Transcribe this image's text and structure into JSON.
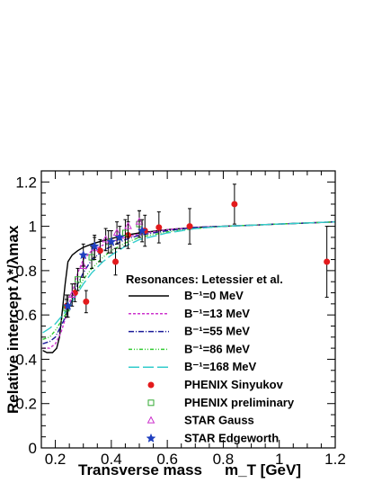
{
  "chart_data": {
    "type": "line",
    "title": "",
    "xlabel": "Transverse mass",
    "xlabel_unit": "m_T [GeV]",
    "ylabel": "Relative intercept",
    "ylabel_ratio": "λ*/λmax",
    "xlim": [
      0.15,
      1.2
    ],
    "ylim": [
      0.0,
      1.25
    ],
    "x_ticks": [
      "0.2",
      "0.4",
      "0.6",
      "0.8",
      "1",
      "1.2"
    ],
    "x_tick_values": [
      0.2,
      0.4,
      0.6,
      0.8,
      1.0,
      1.2
    ],
    "y_ticks": [
      "0",
      "0.2",
      "0.4",
      "0.6",
      "0.8",
      "1",
      "1.2"
    ],
    "y_tick_values": [
      0,
      0.2,
      0.4,
      0.6,
      0.8,
      1.0,
      1.2
    ],
    "legend_title": "Resonances: Letessier et al.",
    "legend_position": "center-right",
    "curves": [
      {
        "name": "B⁻¹=0 MeV",
        "color": "#000000",
        "dash": "",
        "x": [
          0.155,
          0.17,
          0.19,
          0.205,
          0.215,
          0.225,
          0.235,
          0.245,
          0.26,
          0.28,
          0.3,
          0.33,
          0.37,
          0.4,
          0.45,
          0.5,
          0.6,
          0.7,
          0.8,
          0.9,
          1.0,
          1.1,
          1.2
        ],
        "y": [
          0.44,
          0.43,
          0.43,
          0.45,
          0.5,
          0.62,
          0.74,
          0.84,
          0.87,
          0.89,
          0.905,
          0.92,
          0.935,
          0.945,
          0.96,
          0.97,
          0.985,
          0.995,
          1.0,
          1.005,
          1.01,
          1.015,
          1.02
        ]
      },
      {
        "name": "B⁻¹=13 MeV",
        "color": "#cc33cc",
        "dash": "3,2",
        "x": [
          0.155,
          0.18,
          0.2,
          0.22,
          0.24,
          0.26,
          0.28,
          0.3,
          0.33,
          0.37,
          0.4,
          0.45,
          0.5,
          0.6,
          0.7,
          0.8,
          0.9,
          1.0,
          1.1,
          1.2
        ],
        "y": [
          0.45,
          0.45,
          0.47,
          0.52,
          0.6,
          0.7,
          0.79,
          0.85,
          0.89,
          0.915,
          0.93,
          0.95,
          0.965,
          0.985,
          0.995,
          1.0,
          1.005,
          1.01,
          1.015,
          1.02
        ]
      },
      {
        "name": "B⁻¹=55 MeV",
        "color": "#1a1a99",
        "dash": "6,2,1,2",
        "x": [
          0.155,
          0.18,
          0.2,
          0.22,
          0.24,
          0.26,
          0.28,
          0.3,
          0.33,
          0.37,
          0.4,
          0.45,
          0.5,
          0.6,
          0.7,
          0.8,
          0.9,
          1.0,
          1.1,
          1.2
        ],
        "y": [
          0.47,
          0.48,
          0.5,
          0.55,
          0.6,
          0.67,
          0.74,
          0.79,
          0.85,
          0.89,
          0.91,
          0.94,
          0.96,
          0.98,
          0.995,
          1.0,
          1.005,
          1.01,
          1.015,
          1.02
        ]
      },
      {
        "name": "B⁻¹=86 MeV",
        "color": "#33cc33",
        "dash": "4,2,1,2,1,2",
        "x": [
          0.155,
          0.18,
          0.2,
          0.22,
          0.24,
          0.26,
          0.28,
          0.3,
          0.33,
          0.37,
          0.4,
          0.45,
          0.5,
          0.6,
          0.7,
          0.8,
          0.9,
          1.0,
          1.1,
          1.2
        ],
        "y": [
          0.49,
          0.5,
          0.53,
          0.57,
          0.61,
          0.66,
          0.71,
          0.76,
          0.81,
          0.86,
          0.89,
          0.925,
          0.95,
          0.975,
          0.99,
          1.0,
          1.005,
          1.01,
          1.015,
          1.02
        ]
      },
      {
        "name": "B⁻¹=168 MeV",
        "color": "#33cccc",
        "dash": "12,4",
        "x": [
          0.155,
          0.18,
          0.2,
          0.22,
          0.24,
          0.26,
          0.28,
          0.3,
          0.33,
          0.37,
          0.4,
          0.45,
          0.5,
          0.6,
          0.7,
          0.8,
          0.9,
          1.0,
          1.1,
          1.2
        ],
        "y": [
          0.52,
          0.54,
          0.56,
          0.59,
          0.62,
          0.66,
          0.7,
          0.74,
          0.79,
          0.84,
          0.87,
          0.91,
          0.94,
          0.97,
          0.99,
          1.0,
          1.005,
          1.01,
          1.015,
          1.02
        ]
      }
    ],
    "points": [
      {
        "name": "PHENIX Sinyukov",
        "marker": "circle",
        "color": "#e31a1c",
        "x": [
          0.24,
          0.27,
          0.31,
          0.36,
          0.415,
          0.46,
          0.52,
          0.57,
          0.68,
          0.84,
          1.17
        ],
        "y": [
          0.64,
          0.7,
          0.66,
          0.89,
          0.84,
          0.96,
          0.98,
          0.995,
          1.0,
          1.1,
          0.84
        ],
        "err": [
          0.05,
          0.04,
          0.05,
          0.05,
          0.06,
          0.06,
          0.07,
          0.07,
          0.08,
          0.09,
          0.16
        ]
      },
      {
        "name": "PHENIX preliminary",
        "marker": "open-square",
        "color": "#33aa33",
        "x": [
          0.24,
          0.28,
          0.33,
          0.39,
          0.45,
          0.5
        ],
        "y": [
          0.63,
          0.76,
          0.86,
          0.93,
          0.97,
          1.01
        ],
        "err": [
          0.04,
          0.05,
          0.05,
          0.05,
          0.06,
          0.06
        ]
      },
      {
        "name": "STAR Gauss",
        "marker": "open-triangle",
        "color": "#cc33cc",
        "x": [
          0.26,
          0.3,
          0.34,
          0.38,
          0.42,
          0.46,
          0.5
        ],
        "y": [
          0.69,
          0.82,
          0.9,
          0.94,
          0.97,
          1.0,
          1.02
        ],
        "err": [
          0.05,
          0.05,
          0.05,
          0.05,
          0.05,
          0.05,
          0.05
        ]
      },
      {
        "name": "STAR Edgeworth",
        "marker": "star",
        "color": "#1f3fbf",
        "x": [
          0.245,
          0.3,
          0.34,
          0.4,
          0.43,
          0.51
        ],
        "y": [
          0.64,
          0.87,
          0.91,
          0.93,
          0.95,
          0.98
        ],
        "err": [
          0.05,
          0.05,
          0.05,
          0.05,
          0.05,
          0.05
        ]
      }
    ]
  }
}
